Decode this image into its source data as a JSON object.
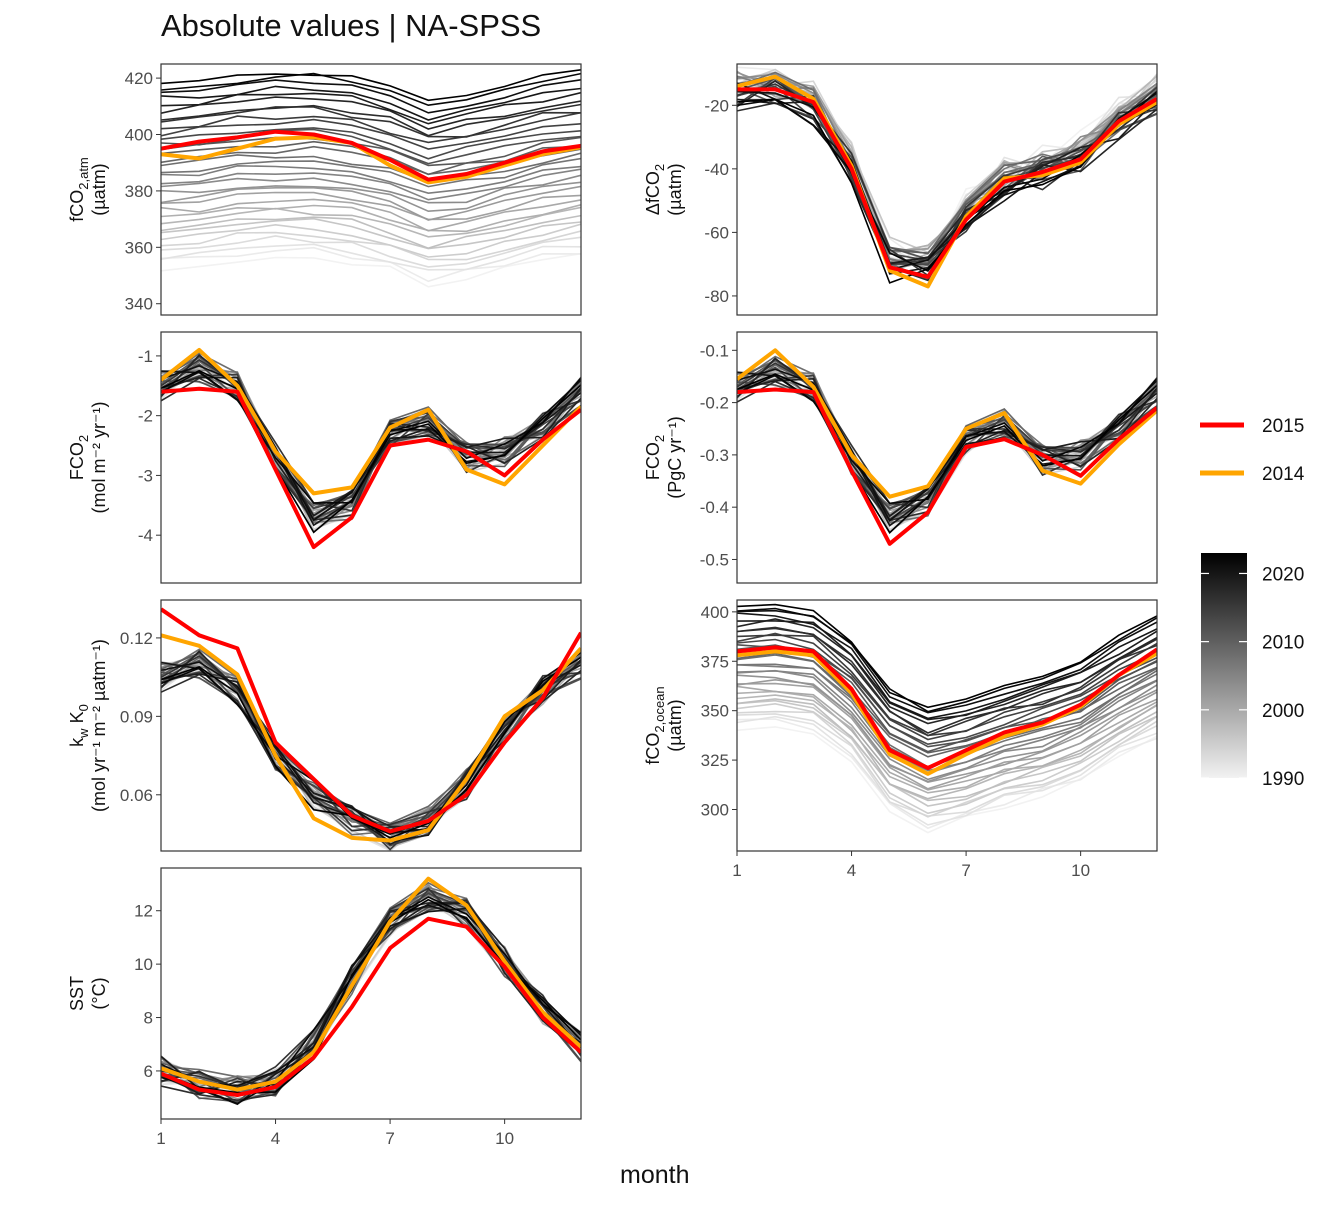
{
  "title": "Absolute values | NA-SPSS",
  "xlabel": "month",
  "colors": {
    "year_2015": "#ff0000",
    "year_2014": "#ffa500",
    "background": "#ffffff",
    "panel_border": "#333333"
  },
  "legend": {
    "highlight": [
      {
        "label": "2015",
        "color": "#ff0000"
      },
      {
        "label": "2014",
        "color": "#ffa500"
      }
    ],
    "colorbar": {
      "labels": [
        "2020",
        "2010",
        "2000",
        "1990"
      ],
      "values": [
        2020,
        2010,
        2000,
        1990
      ],
      "min": 1990,
      "max": 2023,
      "low_color": "#f2f2f2",
      "high_color": "#000000"
    }
  },
  "chart_data": [
    {
      "id": "fco2atm",
      "type": "line",
      "ylabel_main": "fCO",
      "ylabel_sub": "2,atm",
      "ylabel_unit": "(µatm)",
      "ylim": [
        336,
        425
      ],
      "yticks": [
        340,
        360,
        380,
        400,
        420
      ],
      "xlim": [
        1,
        12
      ],
      "xticks": [
        1,
        4,
        7,
        10
      ],
      "show_xticks": false,
      "base": [
        353,
        354,
        356,
        357,
        357,
        355,
        352,
        347,
        349,
        352,
        355,
        357
      ],
      "base_start": 353,
      "base_step": 1.98,
      "series_2015": [
        395,
        397.5,
        399,
        401,
        400,
        397,
        391,
        384,
        386,
        390,
        394,
        396
      ],
      "series_2014": [
        393,
        391.5,
        395,
        398.5,
        399,
        397,
        389,
        383,
        385,
        389,
        393,
        395.5
      ]
    },
    {
      "id": "dfco2",
      "type": "line",
      "ylabel_main": "ΔfCO",
      "ylabel_sub": "2",
      "ylabel_unit": "(µatm)",
      "ylim": [
        -86,
        -7
      ],
      "yticks": [
        -80,
        -60,
        -40,
        -20
      ],
      "xlim": [
        1,
        12
      ],
      "xticks": [
        1,
        4,
        7,
        10
      ],
      "show_xticks": false,
      "base": [
        -15,
        -14,
        -19,
        -38,
        -68,
        -70,
        -54,
        -43,
        -40,
        -35,
        -25,
        -17
      ],
      "series_2015": [
        -15,
        -15,
        -19,
        -40,
        -71,
        -74,
        -56,
        -44,
        -41,
        -37,
        -25,
        -18
      ],
      "series_2014": [
        -14,
        -11,
        -18,
        -39,
        -72,
        -77,
        -55,
        -43,
        -42,
        -38,
        -26,
        -19
      ]
    },
    {
      "id": "fco2mol",
      "type": "line",
      "ylabel_main": "FCO",
      "ylabel_sub": "2",
      "ylabel_unit": "(mol m⁻² yr⁻¹)",
      "ylim": [
        -4.8,
        -0.6
      ],
      "yticks": [
        -4,
        -3,
        -2,
        -1
      ],
      "xlim": [
        1,
        12
      ],
      "xticks": [
        1,
        4,
        7,
        10
      ],
      "show_xticks": false,
      "base": [
        -1.5,
        -1.2,
        -1.5,
        -2.7,
        -3.7,
        -3.5,
        -2.3,
        -2.1,
        -2.7,
        -2.6,
        -2.2,
        -1.6
      ],
      "series_2015": [
        -1.6,
        -1.55,
        -1.6,
        -2.9,
        -4.2,
        -3.7,
        -2.5,
        -2.4,
        -2.6,
        -3.0,
        -2.4,
        -1.9
      ],
      "series_2014": [
        -1.4,
        -0.9,
        -1.5,
        -2.6,
        -3.3,
        -3.2,
        -2.2,
        -1.9,
        -2.9,
        -3.15,
        -2.5,
        -1.85
      ]
    },
    {
      "id": "fco2pgc",
      "type": "line",
      "ylabel_main": "FCO",
      "ylabel_sub": "2",
      "ylabel_unit": "(PgC yr⁻¹)",
      "ylim": [
        -0.545,
        -0.065
      ],
      "yticks": [
        -0.5,
        -0.4,
        -0.3,
        -0.2,
        -0.1
      ],
      "xlim": [
        1,
        12
      ],
      "xticks": [
        1,
        4,
        7,
        10
      ],
      "show_xticks": false,
      "base": [
        -0.17,
        -0.14,
        -0.17,
        -0.31,
        -0.42,
        -0.39,
        -0.27,
        -0.24,
        -0.31,
        -0.3,
        -0.25,
        -0.18
      ],
      "series_2015": [
        -0.18,
        -0.175,
        -0.18,
        -0.33,
        -0.47,
        -0.41,
        -0.285,
        -0.27,
        -0.3,
        -0.34,
        -0.27,
        -0.21
      ],
      "series_2014": [
        -0.155,
        -0.1,
        -0.17,
        -0.3,
        -0.38,
        -0.36,
        -0.25,
        -0.22,
        -0.33,
        -0.355,
        -0.28,
        -0.215
      ]
    },
    {
      "id": "kwk0",
      "type": "line",
      "ylabel_main": "k",
      "ylabel_sub": "w",
      "ylabel_main2": " K",
      "ylabel_sub2": "0",
      "ylabel_unit": "(mol yr⁻¹ m⁻² µatm⁻¹)",
      "ylim": [
        0.0385,
        0.1345
      ],
      "yticks": [
        0.06,
        0.09,
        0.12
      ],
      "xlim": [
        1,
        12
      ],
      "xticks": [
        1,
        4,
        7,
        10
      ],
      "show_xticks": false,
      "base": [
        0.105,
        0.11,
        0.1,
        0.075,
        0.06,
        0.05,
        0.044,
        0.05,
        0.064,
        0.085,
        0.1,
        0.11
      ],
      "series_2015": [
        0.131,
        0.121,
        0.116,
        0.08,
        0.066,
        0.052,
        0.046,
        0.05,
        0.06,
        0.08,
        0.097,
        0.122
      ],
      "series_2014": [
        0.121,
        0.117,
        0.106,
        0.075,
        0.051,
        0.0435,
        0.0425,
        0.0465,
        0.066,
        0.09,
        0.1,
        0.116
      ]
    },
    {
      "id": "fco2ocean",
      "type": "line",
      "ylabel_main": "fCO",
      "ylabel_sub": "2,ocean",
      "ylabel_unit": "(µatm)",
      "ylim": [
        279,
        406
      ],
      "yticks": [
        300,
        325,
        350,
        375,
        400
      ],
      "xlim": [
        1,
        12
      ],
      "xticks": [
        1,
        4,
        7,
        10
      ],
      "show_xticks": true,
      "base": [
        342,
        343,
        340,
        325,
        300,
        290,
        295,
        302,
        307,
        314,
        326,
        336
      ],
      "base_start": 342,
      "base_step": 1.85,
      "series_2015": [
        380,
        382,
        380,
        361,
        330,
        321,
        330,
        339,
        344,
        353,
        368,
        381
      ],
      "series_2014": [
        378,
        380,
        378,
        359,
        328,
        318,
        328,
        337,
        343,
        352,
        368,
        379
      ]
    },
    {
      "id": "sst",
      "type": "line",
      "ylabel_main": "SST",
      "ylabel_sub": "",
      "ylabel_unit": "(°C)",
      "ylim": [
        4.2,
        13.6
      ],
      "yticks": [
        6,
        8,
        10,
        12
      ],
      "xlim": [
        1,
        12
      ],
      "xticks": [
        1,
        4,
        7,
        10
      ],
      "show_xticks": true,
      "base": [
        6.0,
        5.5,
        5.3,
        5.6,
        7.0,
        9.4,
        11.6,
        12.5,
        11.9,
        10.1,
        8.3,
        6.9
      ],
      "series_2015": [
        5.9,
        5.3,
        5.1,
        5.4,
        6.5,
        8.4,
        10.6,
        11.7,
        11.4,
        9.9,
        8.0,
        6.7
      ],
      "series_2014": [
        6.1,
        5.6,
        5.3,
        5.6,
        6.7,
        9.2,
        11.6,
        13.2,
        12.2,
        10.1,
        8.2,
        6.9
      ]
    }
  ]
}
